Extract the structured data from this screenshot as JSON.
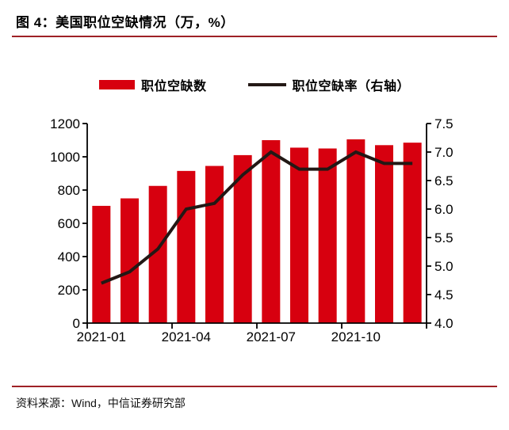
{
  "header": {
    "title": "图 4：美国职位空缺情况（万，%）"
  },
  "legend": {
    "bars_label": "职位空缺数",
    "line_label": "职位空缺率（右轴）"
  },
  "chart_data": {
    "type": "bar",
    "categories": [
      "2021-01",
      "2021-02",
      "2021-03",
      "2021-04",
      "2021-05",
      "2021-06",
      "2021-07",
      "2021-08",
      "2021-09",
      "2021-10",
      "2021-11",
      "2021-12"
    ],
    "series": [
      {
        "name": "职位空缺数",
        "type": "bar",
        "axis": "left",
        "values": [
          705,
          750,
          825,
          915,
          945,
          1010,
          1100,
          1055,
          1050,
          1105,
          1070,
          1085
        ]
      },
      {
        "name": "职位空缺率（右轴）",
        "type": "line",
        "axis": "right",
        "values": [
          4.7,
          4.9,
          5.3,
          6.0,
          6.1,
          6.6,
          7.0,
          6.7,
          6.7,
          7.0,
          6.8,
          6.8
        ]
      }
    ],
    "left_axis": {
      "min": 0,
      "max": 1200,
      "step": 200,
      "ticks": [
        "0",
        "200",
        "400",
        "600",
        "800",
        "1000",
        "1200"
      ]
    },
    "right_axis": {
      "min": 4.0,
      "max": 7.5,
      "step": 0.5,
      "ticks": [
        "4.0",
        "4.5",
        "5.0",
        "5.5",
        "6.0",
        "6.5",
        "7.0",
        "7.5"
      ]
    },
    "x_tick_labels": [
      "2021-01",
      "2021-04",
      "2021-07",
      "2021-10"
    ],
    "x_label_every": 3,
    "grid": false,
    "legend_position": "top",
    "title": "美国职位空缺情况（万，%）",
    "xlabel": "",
    "ylabel": ""
  },
  "footer": {
    "source": "资料来源：Wind，中信证券研究部"
  },
  "colors": {
    "bar": "#d7000f",
    "line": "#231815",
    "rule": "#9e2126",
    "axis": "#000000",
    "text": "#000000"
  }
}
